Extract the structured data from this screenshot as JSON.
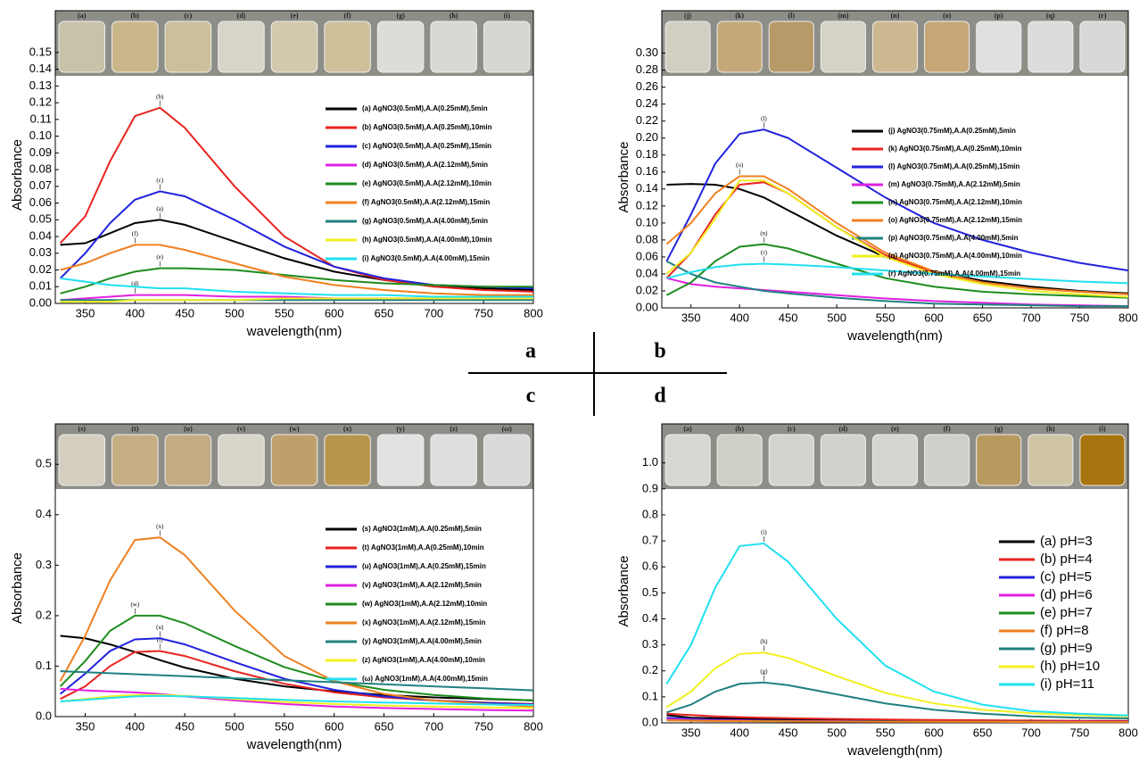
{
  "panel_labels": [
    "a",
    "b",
    "c",
    "d"
  ],
  "chart_data": [
    {
      "type": "line",
      "x_label": "wavelength(nm)",
      "y_label": "Absorbance",
      "photo_labels": [
        "(a)",
        "(b)",
        "(c)",
        "(d)",
        "(e)",
        "(f)",
        "(g)",
        "(h)",
        "(i)"
      ],
      "x": [
        325,
        350,
        375,
        400,
        425,
        450,
        500,
        550,
        600,
        650,
        700,
        750,
        800
      ],
      "xlim": [
        320,
        800
      ],
      "xticks": [
        350,
        400,
        450,
        500,
        550,
        600,
        650,
        700,
        750,
        800
      ],
      "ylim": [
        0,
        0.175
      ],
      "yticks": [
        {
          "value": 0,
          "label": "0.00"
        },
        {
          "value": 0.01,
          "label": "0.01"
        },
        {
          "value": 0.02,
          "label": "0.02"
        },
        {
          "value": 0.03,
          "label": "0.03"
        },
        {
          "value": 0.04,
          "label": "0.04"
        },
        {
          "value": 0.05,
          "label": "0.05"
        },
        {
          "value": 0.06,
          "label": "0.06"
        },
        {
          "value": 0.07,
          "label": "0.07"
        },
        {
          "value": 0.08,
          "label": "0.08"
        },
        {
          "value": 0.09,
          "label": "0.09"
        },
        {
          "value": 0.1,
          "label": "0.10"
        },
        {
          "value": 0.11,
          "label": "0.11"
        },
        {
          "value": 0.12,
          "label": "0.12"
        },
        {
          "value": 0.13,
          "label": "0.13"
        },
        {
          "value": 0.14,
          "label": "0.14"
        },
        {
          "value": 0.15,
          "label": "0.15"
        }
      ],
      "series": [
        {
          "name": "(a) AgNO3(0.5mM),A.A(0.25mM),5min",
          "color": "#000000",
          "annotation": "(a)",
          "values": [
            0.035,
            0.036,
            0.042,
            0.048,
            0.05,
            0.047,
            0.037,
            0.027,
            0.019,
            0.014,
            0.011,
            0.009,
            0.008
          ]
        },
        {
          "name": "(b) AgNO3(0.5mM),A.A(0.25mM),10min",
          "color": "#e8231f",
          "annotation": "(b)",
          "values": [
            0.036,
            0.052,
            0.085,
            0.112,
            0.117,
            0.105,
            0.07,
            0.04,
            0.022,
            0.014,
            0.01,
            0.008,
            0.007
          ]
        },
        {
          "name": "(c) AgNO3(0.5mM),A.A(0.25mM),15min",
          "color": "#2222dd",
          "annotation": "(c)",
          "values": [
            0.015,
            0.03,
            0.048,
            0.062,
            0.067,
            0.064,
            0.05,
            0.034,
            0.022,
            0.015,
            0.011,
            0.01,
            0.009
          ]
        },
        {
          "name": "(d) AgNO3(0.5mM),A.A(2.12mM),5min",
          "color": "#e020e0",
          "annotation": "(d)",
          "values": [
            0.002,
            0.003,
            0.004,
            0.005,
            0.005,
            0.005,
            0.004,
            0.004,
            0.003,
            0.003,
            0.003,
            0.003,
            0.003
          ]
        },
        {
          "name": "(e) AgNO3(0.5mM),A.A(2.12mM),10min",
          "color": "#1e8c1e",
          "annotation": "(e)",
          "values": [
            0.006,
            0.01,
            0.015,
            0.019,
            0.021,
            0.021,
            0.02,
            0.017,
            0.014,
            0.012,
            0.011,
            0.01,
            0.01
          ]
        },
        {
          "name": "(f) AgNO3(0.5mM),A.A(2.12mM),15min",
          "color": "#f08020",
          "annotation": "(f)",
          "values": [
            0.02,
            0.024,
            0.03,
            0.035,
            0.035,
            0.032,
            0.024,
            0.016,
            0.011,
            0.008,
            0.006,
            0.005,
            0.005
          ]
        },
        {
          "name": "(g) AgNO3(0.5mM),A.A(4.00mM),5min",
          "color": "#208080",
          "values": [
            0.002,
            0.002,
            0.002,
            0.002,
            0.002,
            0.002,
            0.002,
            0.002,
            0.002,
            0.002,
            0.002,
            0.002,
            0.002
          ]
        },
        {
          "name": "(h) AgNO3(0.5mM),A.A(4.00mM),10min",
          "color": "#f0f020",
          "values": [
            0.001,
            0.001,
            0.001,
            0.002,
            0.002,
            0.002,
            0.002,
            0.003,
            0.003,
            0.003,
            0.003,
            0.003,
            0.003
          ]
        },
        {
          "name": "(i) AgNO3(0.5mM),A.A(4.00mM),15min",
          "color": "#20e0f0",
          "values": [
            0.015,
            0.013,
            0.011,
            0.01,
            0.009,
            0.009,
            0.007,
            0.006,
            0.005,
            0.005,
            0.004,
            0.004,
            0.004
          ]
        }
      ]
    },
    {
      "type": "line",
      "x_label": "wavelength(nm)",
      "y_label": "Absorbance",
      "photo_labels": [
        "(j)",
        "(k)",
        "(l)",
        "(m)",
        "(n)",
        "(o)",
        "(p)",
        "(q)",
        "(r)"
      ],
      "x": [
        325,
        350,
        375,
        400,
        425,
        450,
        500,
        550,
        600,
        650,
        700,
        750,
        800
      ],
      "xlim": [
        320,
        800
      ],
      "xticks": [
        350,
        400,
        450,
        500,
        550,
        600,
        650,
        700,
        750,
        800
      ],
      "ylim": [
        0,
        0.35
      ],
      "yticks": [
        {
          "value": 0,
          "label": "0.00"
        },
        {
          "value": 0.02,
          "label": "0.02"
        },
        {
          "value": 0.04,
          "label": "0.04"
        },
        {
          "value": 0.06,
          "label": "0.06"
        },
        {
          "value": 0.08,
          "label": "0.08"
        },
        {
          "value": 0.1,
          "label": "0.10"
        },
        {
          "value": 0.12,
          "label": "0.12"
        },
        {
          "value": 0.14,
          "label": "0.14"
        },
        {
          "value": 0.16,
          "label": "0.16"
        },
        {
          "value": 0.18,
          "label": "0.18"
        },
        {
          "value": 0.2,
          "label": "0.20"
        },
        {
          "value": 0.22,
          "label": "0.22"
        },
        {
          "value": 0.24,
          "label": "0.24"
        },
        {
          "value": 0.26,
          "label": "0.26"
        },
        {
          "value": 0.28,
          "label": "0.28"
        },
        {
          "value": 0.3,
          "label": "0.30"
        }
      ],
      "series": [
        {
          "name": "(j) AgNO3(0.75mM),A.A(0.25mM),5min",
          "color": "#000000",
          "values": [
            0.145,
            0.146,
            0.145,
            0.14,
            0.13,
            0.115,
            0.085,
            0.06,
            0.043,
            0.032,
            0.025,
            0.02,
            0.017
          ]
        },
        {
          "name": "(k) AgNO3(0.75mM),A.A(0.25mM),10min",
          "color": "#e8231f",
          "values": [
            0.035,
            0.065,
            0.11,
            0.145,
            0.148,
            0.135,
            0.095,
            0.062,
            0.042,
            0.03,
            0.023,
            0.019,
            0.016
          ]
        },
        {
          "name": "(l) AgNO3(0.75mM),A.A(0.25mM),15min",
          "color": "#2222dd",
          "annotation": "(l)",
          "values": [
            0.055,
            0.11,
            0.17,
            0.205,
            0.21,
            0.2,
            0.165,
            0.13,
            0.1,
            0.08,
            0.065,
            0.053,
            0.044
          ]
        },
        {
          "name": "(m) AgNO3(0.75mM),A.A(2.12mM),5min",
          "color": "#e020e0",
          "values": [
            0.035,
            0.028,
            0.025,
            0.023,
            0.021,
            0.019,
            0.015,
            0.011,
            0.008,
            0.006,
            0.004,
            0.003,
            0.002
          ]
        },
        {
          "name": "(n) AgNO3(0.75mM),A.A(2.12mM),10min",
          "color": "#1e8c1e",
          "annotation": "(n)",
          "values": [
            0.015,
            0.03,
            0.055,
            0.072,
            0.075,
            0.07,
            0.052,
            0.035,
            0.025,
            0.019,
            0.016,
            0.014,
            0.012
          ]
        },
        {
          "name": "(o) AgNO3(0.75mM),A.A(2.12mM),15min",
          "color": "#f08020",
          "annotation": "(o)",
          "values": [
            0.075,
            0.1,
            0.135,
            0.155,
            0.155,
            0.14,
            0.1,
            0.065,
            0.043,
            0.03,
            0.023,
            0.019,
            0.016
          ]
        },
        {
          "name": "(p) AgNO3(0.75mM),A.A(4.00mM),5min",
          "color": "#208080",
          "values": [
            0.055,
            0.04,
            0.03,
            0.025,
            0.02,
            0.017,
            0.012,
            0.008,
            0.005,
            0.004,
            0.003,
            0.002,
            0.002
          ]
        },
        {
          "name": "(q) AgNO3(0.75mM),A.A(4.00mM),10min",
          "color": "#f0f020",
          "values": [
            0.04,
            0.065,
            0.105,
            0.15,
            0.15,
            0.135,
            0.095,
            0.06,
            0.04,
            0.028,
            0.02,
            0.016,
            0.013
          ]
        },
        {
          "name": "(r) AgNO3(0.75mM),A.A(4.00mM),15min",
          "color": "#20e0f0",
          "annotation": "(r)",
          "values": [
            0.035,
            0.042,
            0.048,
            0.051,
            0.052,
            0.051,
            0.048,
            0.044,
            0.04,
            0.037,
            0.034,
            0.031,
            0.029
          ]
        }
      ]
    },
    {
      "type": "line",
      "x_label": "wavelength(nm)",
      "y_label": "Absorbance",
      "photo_labels": [
        "(s)",
        "(t)",
        "(u)",
        "(v)",
        "(w)",
        "(x)",
        "(y)",
        "(z)",
        "(ω)"
      ],
      "x": [
        325,
        350,
        375,
        400,
        425,
        450,
        500,
        550,
        600,
        650,
        700,
        750,
        800
      ],
      "xlim": [
        320,
        800
      ],
      "xticks": [
        350,
        400,
        450,
        500,
        550,
        600,
        650,
        700,
        750,
        800
      ],
      "ylim": [
        0,
        0.58
      ],
      "yticks": [
        {
          "value": 0,
          "label": "0.0"
        },
        0.1,
        0.2,
        0.3,
        0.4,
        0.5
      ],
      "series": [
        {
          "name": "(s) AgNO3(1mM),A.A(0.25mM),5min",
          "color": "#000000",
          "values": [
            0.16,
            0.155,
            0.143,
            0.128,
            0.112,
            0.097,
            0.075,
            0.06,
            0.05,
            0.043,
            0.038,
            0.035,
            0.032
          ]
        },
        {
          "name": "(t) AgNO3(1mM),A.A(0.25mM),10min",
          "color": "#e8231f",
          "annotation": "(t)",
          "values": [
            0.035,
            0.06,
            0.1,
            0.128,
            0.13,
            0.12,
            0.09,
            0.065,
            0.048,
            0.038,
            0.032,
            0.028,
            0.025
          ]
        },
        {
          "name": "(u) AgNO3(1mM),A.A(0.25mM),15min",
          "color": "#2222dd",
          "annotation": "(u)",
          "values": [
            0.045,
            0.085,
            0.13,
            0.153,
            0.155,
            0.143,
            0.108,
            0.075,
            0.053,
            0.04,
            0.032,
            0.027,
            0.024
          ]
        },
        {
          "name": "(v) AgNO3(1mM),A.A(2.12mM),5min",
          "color": "#e020e0",
          "values": [
            0.055,
            0.052,
            0.05,
            0.048,
            0.045,
            0.04,
            0.032,
            0.025,
            0.02,
            0.017,
            0.015,
            0.013,
            0.012
          ]
        },
        {
          "name": "(w) AgNO3(1mM),A.A(2.12mM),10min",
          "color": "#1e8c1e",
          "annotation": "(w)",
          "values": [
            0.06,
            0.11,
            0.17,
            0.2,
            0.2,
            0.185,
            0.14,
            0.098,
            0.07,
            0.053,
            0.043,
            0.036,
            0.032
          ]
        },
        {
          "name": "(x) AgNO3(1mM),A.A(2.12mM),15min",
          "color": "#f08020",
          "annotation": "(x)",
          "values": [
            0.07,
            0.16,
            0.27,
            0.35,
            0.355,
            0.32,
            0.21,
            0.12,
            0.07,
            0.045,
            0.032,
            0.025,
            0.02
          ]
        },
        {
          "name": "(y) AgNO3(1mM),A.A(4.00mM),5min",
          "color": "#208080",
          "values": [
            0.09,
            0.088,
            0.086,
            0.084,
            0.082,
            0.08,
            0.076,
            0.072,
            0.068,
            0.064,
            0.06,
            0.056,
            0.052
          ]
        },
        {
          "name": "(z) AgNO3(1mM),A.A(4.00mM),10min",
          "color": "#f0f020",
          "values": [
            0.03,
            0.035,
            0.04,
            0.043,
            0.043,
            0.041,
            0.035,
            0.029,
            0.025,
            0.022,
            0.02,
            0.018,
            0.017
          ]
        },
        {
          "name": "(ω) AgNO3(1mM),A.A(4.00mM),15min",
          "color": "#20e0f0",
          "values": [
            0.03,
            0.033,
            0.037,
            0.04,
            0.041,
            0.04,
            0.037,
            0.033,
            0.03,
            0.028,
            0.026,
            0.024,
            0.023
          ]
        }
      ]
    },
    {
      "type": "line",
      "x_label": "wavelength(nm)",
      "y_label": "Absorbance",
      "photo_labels": [
        "(a)",
        "(b)",
        "(c)",
        "(d)",
        "(e)",
        "(f)",
        "(g)",
        "(h)",
        "(i)"
      ],
      "x": [
        325,
        350,
        375,
        400,
        425,
        450,
        500,
        550,
        600,
        650,
        700,
        750,
        800
      ],
      "xlim": [
        320,
        800
      ],
      "xticks": [
        350,
        400,
        450,
        500,
        550,
        600,
        650,
        700,
        750,
        800
      ],
      "ylim": [
        0,
        1.15
      ],
      "yticks": [
        {
          "value": 0,
          "label": "0.0"
        },
        0.1,
        0.2,
        0.3,
        0.4,
        0.5,
        0.6,
        0.7,
        0.8,
        0.9,
        {
          "value": 1,
          "label": "1.0"
        }
      ],
      "series": [
        {
          "name": "(a) pH=3",
          "color": "#000000",
          "values": [
            0.03,
            0.02,
            0.018,
            0.016,
            0.014,
            0.013,
            0.011,
            0.01,
            0.009,
            0.008,
            0.007,
            0.007,
            0.006
          ]
        },
        {
          "name": "(b) pH=4",
          "color": "#e8231f",
          "values": [
            0.035,
            0.03,
            0.025,
            0.022,
            0.02,
            0.018,
            0.015,
            0.013,
            0.011,
            0.01,
            0.009,
            0.008,
            0.008
          ]
        },
        {
          "name": "(c) pH=5",
          "color": "#2222dd",
          "values": [
            0.02,
            0.015,
            0.012,
            0.01,
            0.009,
            0.008,
            0.007,
            0.006,
            0.005,
            0.005,
            0.004,
            0.004,
            0.004
          ]
        },
        {
          "name": "(d) pH=6",
          "color": "#e020e0",
          "values": [
            0.015,
            0.012,
            0.01,
            0.009,
            0.008,
            0.007,
            0.006,
            0.005,
            0.005,
            0.004,
            0.004,
            0.004,
            0.003
          ]
        },
        {
          "name": "(e) pH=7",
          "color": "#1e8c1e",
          "values": [
            0.01,
            0.009,
            0.008,
            0.007,
            0.007,
            0.006,
            0.005,
            0.005,
            0.004,
            0.004,
            0.004,
            0.003,
            0.003
          ]
        },
        {
          "name": "(f)  pH=8",
          "color": "#f08020",
          "values": [
            0.01,
            0.008,
            0.007,
            0.007,
            0.006,
            0.006,
            0.005,
            0.004,
            0.004,
            0.004,
            0.003,
            0.003,
            0.003
          ]
        },
        {
          "name": "(g) pH=9",
          "color": "#208080",
          "annotation": "(g)",
          "values": [
            0.04,
            0.07,
            0.12,
            0.15,
            0.155,
            0.145,
            0.11,
            0.075,
            0.05,
            0.035,
            0.025,
            0.02,
            0.017
          ]
        },
        {
          "name": "(h) pH=10",
          "color": "#f0f020",
          "annotation": "(h)",
          "values": [
            0.06,
            0.12,
            0.21,
            0.265,
            0.27,
            0.25,
            0.18,
            0.115,
            0.075,
            0.05,
            0.037,
            0.03,
            0.025
          ]
        },
        {
          "name": "(i)  pH=11",
          "color": "#20e0f0",
          "annotation": "(i)",
          "values": [
            0.15,
            0.3,
            0.52,
            0.68,
            0.69,
            0.62,
            0.4,
            0.22,
            0.12,
            0.07,
            0.045,
            0.035,
            0.028
          ]
        }
      ]
    }
  ]
}
